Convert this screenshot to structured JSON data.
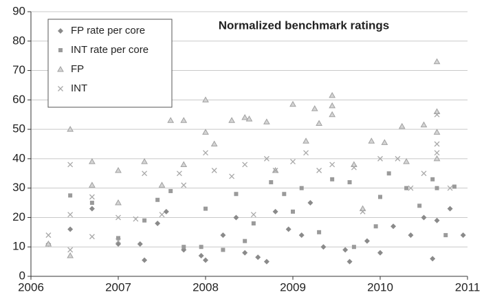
{
  "chart_data": {
    "type": "scatter",
    "title": "Normalized benchmark ratings",
    "xlim": [
      2006,
      2011
    ],
    "xticks": [
      2006,
      2007,
      2008,
      2009,
      2010,
      2011
    ],
    "ylim": [
      0,
      90
    ],
    "yticks": [
      0,
      10,
      20,
      30,
      40,
      50,
      60,
      70,
      80,
      90
    ],
    "grid": true,
    "legend": "upper-left",
    "series": [
      {
        "name": "FP rate per core",
        "marker": "diamond",
        "color": "#8a8a8a",
        "x": [
          2006.2,
          2006.45,
          2006.7,
          2007.0,
          2007.25,
          2007.3,
          2007.45,
          2007.55,
          2007.75,
          2007.95,
          2008.0,
          2008.2,
          2008.35,
          2008.45,
          2008.6,
          2008.7,
          2008.8,
          2008.95,
          2009.1,
          2009.2,
          2009.35,
          2009.6,
          2009.65,
          2009.85,
          2010.0,
          2010.15,
          2010.35,
          2010.5,
          2010.6,
          2010.65,
          2010.8,
          2010.95
        ],
        "values": [
          11,
          16,
          23,
          11,
          11,
          5.5,
          18,
          22,
          9,
          7,
          5.5,
          14,
          20,
          8,
          6.5,
          5,
          22,
          16,
          14,
          25,
          10,
          9,
          5,
          12,
          8,
          17,
          14,
          20,
          6,
          19,
          23,
          14
        ]
      },
      {
        "name": "INT rate per core",
        "marker": "square",
        "color": "#9a9a9a",
        "x": [
          2006.45,
          2006.7,
          2007.0,
          2007.3,
          2007.45,
          2007.6,
          2007.75,
          2007.95,
          2008.0,
          2008.2,
          2008.35,
          2008.45,
          2008.55,
          2008.75,
          2008.9,
          2009.0,
          2009.1,
          2009.3,
          2009.45,
          2009.65,
          2009.7,
          2009.95,
          2010.0,
          2010.1,
          2010.3,
          2010.45,
          2010.6,
          2010.65,
          2010.75,
          2010.85
        ],
        "values": [
          27.5,
          25,
          13,
          19,
          26,
          29,
          10,
          10,
          23,
          9,
          28,
          12,
          18,
          32,
          28,
          22,
          30,
          15,
          33,
          32,
          10,
          17,
          27,
          35,
          30,
          24,
          33,
          30,
          14,
          30.5
        ]
      },
      {
        "name": "FP",
        "marker": "triangle",
        "color": "#a0a0a0",
        "x": [
          2006.2,
          2006.45,
          2006.45,
          2006.7,
          2006.7,
          2007.0,
          2007.0,
          2007.3,
          2007.5,
          2007.6,
          2007.75,
          2007.75,
          2008.0,
          2008.0,
          2008.1,
          2008.3,
          2008.45,
          2008.5,
          2008.7,
          2008.8,
          2009.0,
          2009.15,
          2009.25,
          2009.3,
          2009.45,
          2009.45,
          2009.45,
          2009.7,
          2009.8,
          2009.9,
          2010.05,
          2010.25,
          2010.3,
          2010.5,
          2010.65,
          2010.65,
          2010.65,
          2010.65
        ],
        "values": [
          11,
          50,
          7,
          39,
          31,
          36,
          25,
          39,
          31,
          53,
          53,
          38,
          60,
          49,
          45,
          53,
          54,
          53.5,
          52.5,
          36,
          58.5,
          46,
          57,
          52,
          61.5,
          58,
          55,
          38,
          23,
          46,
          45.5,
          51,
          39,
          51.5,
          73,
          56,
          49,
          40
        ]
      },
      {
        "name": "INT",
        "marker": "cross",
        "color": "#a8a8a8",
        "x": [
          2006.2,
          2006.45,
          2006.45,
          2006.45,
          2006.7,
          2006.7,
          2007.0,
          2007.0,
          2007.2,
          2007.3,
          2007.5,
          2007.7,
          2007.75,
          2008.0,
          2008.1,
          2008.3,
          2008.45,
          2008.55,
          2008.7,
          2008.8,
          2009.0,
          2009.15,
          2009.3,
          2009.45,
          2009.7,
          2009.8,
          2010.0,
          2010.2,
          2010.35,
          2010.5,
          2010.65,
          2010.65,
          2010.65,
          2010.8
        ],
        "values": [
          14,
          38,
          21,
          9,
          13.5,
          27,
          12,
          20,
          19.5,
          35,
          21,
          35,
          31,
          42,
          36,
          34,
          38,
          21,
          40,
          36,
          39,
          42,
          36,
          38,
          37,
          22,
          40,
          40,
          30,
          35,
          55,
          45,
          42,
          30
        ]
      }
    ]
  }
}
